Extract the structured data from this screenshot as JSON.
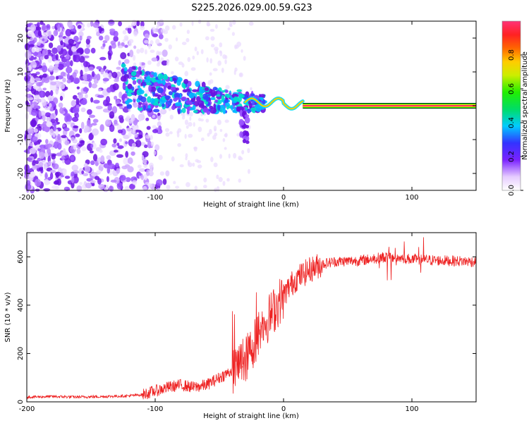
{
  "chart_data": [
    {
      "type": "heatmap",
      "title": "S225.2026.029.00.59.G23",
      "xlabel": "Height of straight line (km)",
      "ylabel": "Frequency (Hz)",
      "xlim": [
        -200,
        150
      ],
      "ylim": [
        -25,
        25
      ],
      "xticks": [
        -200,
        -100,
        0,
        100
      ],
      "yticks": [
        -20,
        -10,
        0,
        10,
        20
      ],
      "colorbar": {
        "label": "Normalized spectral amplitude",
        "range": [
          0,
          1
        ],
        "ticks": [
          "0.0",
          "0.2",
          "0.4",
          "0.6",
          "0.8"
        ]
      },
      "description_series": [
        {
          "name": "noise region",
          "x_range": [
            -200,
            -110
          ],
          "frequency_range": [
            -25,
            25
          ]
        },
        {
          "name": "signal track",
          "points": [
            [
              -125,
              6
            ],
            [
              -100,
              4
            ],
            [
              -80,
              3
            ],
            [
              -60,
              2
            ],
            [
              -40,
              1.5
            ],
            [
              -20,
              1
            ],
            [
              -10,
              1.5
            ],
            [
              0,
              0.3
            ],
            [
              20,
              0
            ],
            [
              150,
              0
            ]
          ]
        }
      ]
    },
    {
      "type": "line",
      "title": "",
      "xlabel": "Height of straight line (km)",
      "ylabel": "SNR (10 * v/v)",
      "xlim": [
        -200,
        150
      ],
      "ylim": [
        0,
        700
      ],
      "xticks": [
        -200,
        -100,
        0,
        100
      ],
      "yticks": [
        0,
        200,
        400,
        600
      ],
      "series": [
        {
          "name": "SNR",
          "color": "#ee2222",
          "x": [
            -200,
            -180,
            -160,
            -140,
            -120,
            -110,
            -100,
            -90,
            -80,
            -70,
            -60,
            -50,
            -40,
            -30,
            -25,
            -20,
            -15,
            -10,
            -5,
            0,
            5,
            10,
            20,
            30,
            40,
            60,
            80,
            100,
            120,
            150
          ],
          "y": [
            20,
            22,
            20,
            22,
            25,
            30,
            45,
            60,
            70,
            60,
            70,
            100,
            130,
            170,
            220,
            280,
            320,
            360,
            400,
            440,
            480,
            510,
            545,
            570,
            580,
            585,
            600,
            590,
            585,
            580
          ]
        }
      ]
    }
  ],
  "icons": {
    "colormap": "rainbow-colorbar"
  },
  "colors": {
    "signal": "#ee2222",
    "noise_purple": "#7733ee"
  }
}
